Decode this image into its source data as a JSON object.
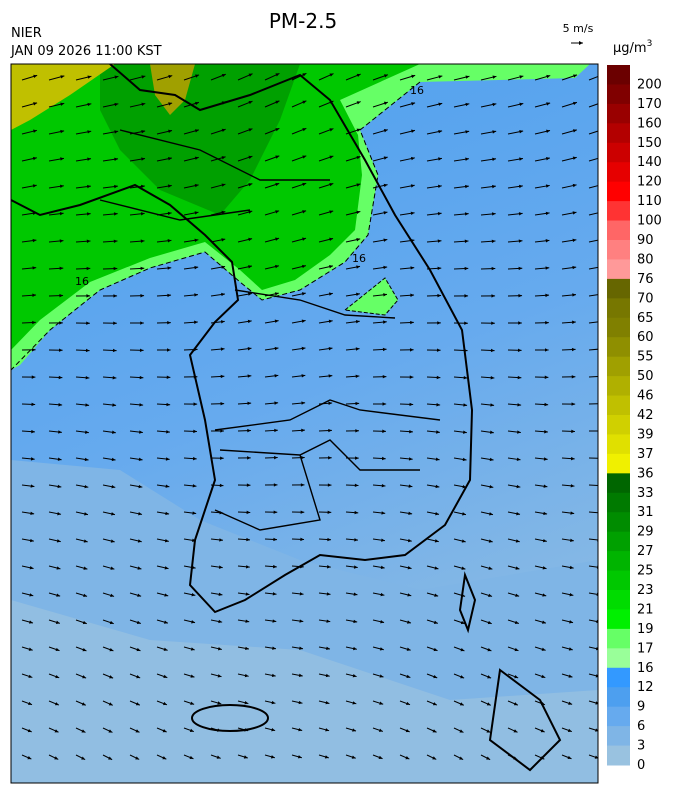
{
  "header": {
    "title": "PM-2.5",
    "source": "NIER",
    "timestamp": "JAN 09 2026 11:00 KST"
  },
  "wind_scale": {
    "label": "5 m/s"
  },
  "colorbar": {
    "unit": "µg/m",
    "unit_superscript": "3",
    "ticks": [
      200,
      170,
      160,
      150,
      140,
      120,
      110,
      100,
      90,
      80,
      76,
      70,
      65,
      60,
      55,
      50,
      46,
      42,
      39,
      37,
      36,
      33,
      31,
      29,
      27,
      25,
      23,
      21,
      19,
      17,
      16,
      12,
      9,
      6,
      3,
      0
    ],
    "colors": [
      "#6b0000",
      "#800000",
      "#990000",
      "#b30000",
      "#cc0000",
      "#e60000",
      "#ff0000",
      "#ff3333",
      "#ff6666",
      "#ff8080",
      "#ff9999",
      "#666600",
      "#777700",
      "#808000",
      "#8f8f00",
      "#a0a000",
      "#b0b000",
      "#c0c000",
      "#d0d000",
      "#e0e000",
      "#f0f000",
      "#006600",
      "#007a00",
      "#008c00",
      "#00a000",
      "#00b400",
      "#00c800",
      "#00dc00",
      "#00f000",
      "#66ff66",
      "#99ff99",
      "#3399ff",
      "#4d9fef",
      "#66aaee",
      "#7fb5e6",
      "#99c2e0"
    ]
  },
  "map": {
    "contour_labels": [
      "16",
      "16",
      "16"
    ]
  }
}
